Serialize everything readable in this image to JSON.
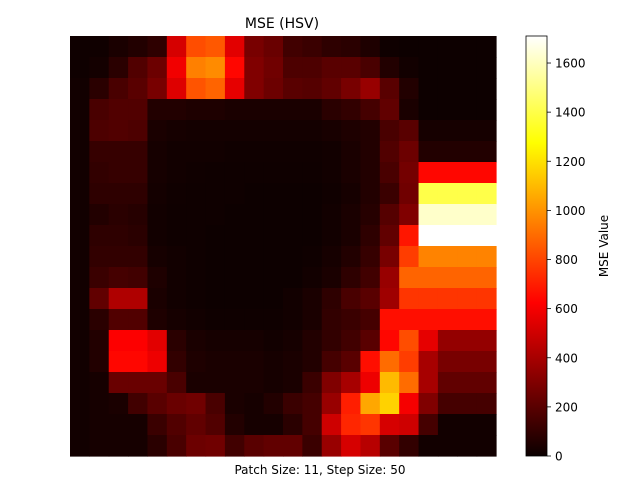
{
  "chart_data": {
    "type": "heatmap",
    "title": "MSE (HSV)",
    "xlabel": "Patch Size: 11, Step Size: 50",
    "colorbar": {
      "label": "MSE Value",
      "range": [
        0,
        1710
      ],
      "ticks": [
        0,
        200,
        400,
        600,
        800,
        1000,
        1200,
        1400,
        1600
      ],
      "tick_labels": [
        "0",
        "200",
        "400",
        "600",
        "800",
        "1000",
        "1200",
        "1400",
        "1600"
      ],
      "colormap": "hot"
    },
    "axes_visible": false,
    "rows": 20,
    "cols": 22,
    "values": [
      [
        10,
        15,
        40,
        60,
        90,
        520,
        820,
        850,
        550,
        280,
        240,
        140,
        120,
        90,
        80,
        50,
        10,
        5,
        5,
        5,
        5,
        5
      ],
      [
        10,
        25,
        80,
        180,
        250,
        590,
        950,
        980,
        640,
        300,
        260,
        170,
        170,
        200,
        200,
        160,
        60,
        20,
        5,
        5,
        5,
        5
      ],
      [
        20,
        80,
        160,
        200,
        280,
        540,
        840,
        880,
        560,
        300,
        250,
        200,
        190,
        220,
        280,
        360,
        200,
        60,
        5,
        5,
        5,
        5
      ],
      [
        20,
        160,
        180,
        180,
        60,
        60,
        50,
        50,
        40,
        40,
        40,
        40,
        40,
        80,
        100,
        150,
        220,
        40,
        5,
        5,
        5,
        5
      ],
      [
        20,
        170,
        180,
        170,
        40,
        30,
        25,
        25,
        25,
        25,
        25,
        25,
        25,
        35,
        50,
        60,
        160,
        200,
        30,
        30,
        30,
        30
      ],
      [
        20,
        110,
        110,
        110,
        30,
        20,
        20,
        20,
        15,
        15,
        15,
        15,
        15,
        20,
        40,
        60,
        180,
        250,
        60,
        60,
        60,
        60
      ],
      [
        20,
        100,
        110,
        110,
        30,
        20,
        15,
        10,
        10,
        10,
        10,
        10,
        10,
        20,
        40,
        60,
        160,
        270,
        640,
        640,
        640,
        640
      ],
      [
        20,
        90,
        90,
        90,
        25,
        15,
        10,
        10,
        10,
        5,
        5,
        5,
        5,
        15,
        30,
        60,
        120,
        260,
        1400,
        1400,
        1400,
        1400
      ],
      [
        20,
        60,
        80,
        70,
        20,
        10,
        10,
        10,
        5,
        5,
        5,
        5,
        5,
        20,
        40,
        70,
        190,
        300,
        1620,
        1620,
        1620,
        1620
      ],
      [
        20,
        90,
        90,
        80,
        20,
        10,
        10,
        5,
        5,
        5,
        5,
        5,
        5,
        20,
        40,
        90,
        220,
        680,
        1710,
        1710,
        1710,
        1710
      ],
      [
        20,
        100,
        100,
        100,
        30,
        20,
        10,
        5,
        5,
        5,
        5,
        5,
        10,
        30,
        60,
        110,
        280,
        780,
        960,
        960,
        960,
        960
      ],
      [
        20,
        120,
        150,
        140,
        50,
        20,
        10,
        5,
        5,
        5,
        5,
        5,
        20,
        40,
        90,
        140,
        360,
        880,
        880,
        880,
        880,
        880
      ],
      [
        20,
        220,
        420,
        420,
        40,
        20,
        10,
        5,
        5,
        5,
        5,
        20,
        40,
        90,
        160,
        200,
        380,
        760,
        760,
        760,
        760,
        760
      ],
      [
        20,
        80,
        180,
        180,
        50,
        30,
        20,
        10,
        10,
        10,
        10,
        20,
        40,
        100,
        120,
        150,
        660,
        660,
        660,
        660,
        660,
        660
      ],
      [
        20,
        60,
        620,
        620,
        550,
        80,
        40,
        30,
        30,
        30,
        20,
        30,
        60,
        100,
        140,
        200,
        640,
        820,
        560,
        350,
        350,
        350
      ],
      [
        20,
        60,
        640,
        640,
        580,
        100,
        50,
        40,
        40,
        40,
        30,
        40,
        60,
        150,
        200,
        660,
        900,
        780,
        400,
        280,
        280,
        280
      ],
      [
        20,
        30,
        240,
        240,
        240,
        160,
        40,
        40,
        40,
        40,
        30,
        40,
        120,
        300,
        400,
        580,
        1100,
        900,
        400,
        220,
        220,
        220
      ],
      [
        20,
        30,
        40,
        140,
        200,
        240,
        260,
        160,
        40,
        30,
        60,
        120,
        150,
        360,
        700,
        1050,
        1160,
        600,
        300,
        150,
        150,
        150
      ],
      [
        20,
        30,
        30,
        30,
        120,
        180,
        220,
        180,
        60,
        30,
        30,
        80,
        150,
        500,
        720,
        760,
        520,
        500,
        150,
        20,
        20,
        20
      ],
      [
        20,
        30,
        30,
        30,
        80,
        160,
        250,
        260,
        140,
        200,
        220,
        220,
        120,
        360,
        520,
        440,
        200,
        100,
        20,
        20,
        20,
        20
      ]
    ]
  }
}
